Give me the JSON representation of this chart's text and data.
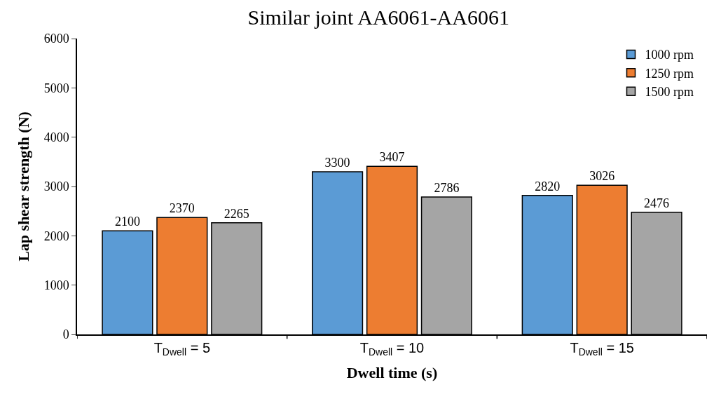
{
  "chart_data": {
    "type": "bar",
    "title": "Similar joint AA6061-AA6061",
    "xlabel": "Dwell time (s)",
    "ylabel": "Lap shear strength (N)",
    "categories": [
      "T$_{Dwell}$ = 5",
      "T$_{Dwell}$ = 10",
      "T$_{Dwell}$ = 15"
    ],
    "series": [
      {
        "name": "1000 rpm",
        "color": "#5b9bd5",
        "values": [
          2100,
          3300,
          2820
        ]
      },
      {
        "name": "1250 rpm",
        "color": "#ed7d31",
        "values": [
          2370,
          3407,
          3026
        ]
      },
      {
        "name": "1500 rpm",
        "color": "#a5a5a5",
        "values": [
          2265,
          2786,
          2476
        ]
      }
    ],
    "ylim": [
      0,
      6000
    ],
    "yticks": [
      0,
      1000,
      2000,
      3000,
      4000,
      5000,
      6000
    ],
    "data_labels": true,
    "legend": "top right"
  }
}
